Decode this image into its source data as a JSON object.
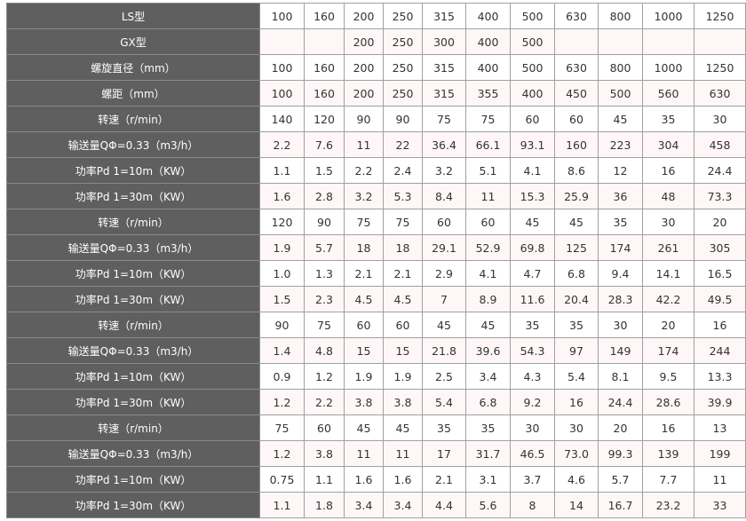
{
  "table": {
    "colors": {
      "header_bg": "#5f5f5f",
      "header_text": "#ffffff",
      "alt_row_bg": "#fff7f7",
      "border": "#a0a0a0"
    },
    "rows": [
      {
        "label": "LS型",
        "values": [
          "100",
          "160",
          "200",
          "250",
          "315",
          "400",
          "500",
          "630",
          "800",
          "1000",
          "1250"
        ]
      },
      {
        "label": "GX型",
        "values": [
          "",
          "",
          "200",
          "250",
          "300",
          "400",
          "500",
          "",
          "",
          "",
          ""
        ]
      },
      {
        "label": "螺旋直径（mm）",
        "values": [
          "100",
          "160",
          "200",
          "250",
          "315",
          "400",
          "500",
          "630",
          "800",
          "1000",
          "1250"
        ]
      },
      {
        "label": "螺距（mm）",
        "values": [
          "100",
          "160",
          "200",
          "250",
          "315",
          "355",
          "400",
          "450",
          "500",
          "560",
          "630"
        ]
      },
      {
        "label": "转速（r/min）",
        "values": [
          "140",
          "120",
          "90",
          "90",
          "75",
          "75",
          "60",
          "60",
          "45",
          "35",
          "30"
        ]
      },
      {
        "label": "输送量QΦ=0.33（m3/h）",
        "values": [
          "2.2",
          "7.6",
          "11",
          "22",
          "36.4",
          "66.1",
          "93.1",
          "160",
          "223",
          "304",
          "458"
        ]
      },
      {
        "label": "功率Pd 1=10m（KW）",
        "values": [
          "1.1",
          "1.5",
          "2.2",
          "2.4",
          "3.2",
          "5.1",
          "4.1",
          "8.6",
          "12",
          "16",
          "24.4"
        ]
      },
      {
        "label": "功率Pd 1=30m（KW）",
        "values": [
          "1.6",
          "2.8",
          "3.2",
          "5.3",
          "8.4",
          "11",
          "15.3",
          "25.9",
          "36",
          "48",
          "73.3"
        ]
      },
      {
        "label": "转速（r/min）",
        "values": [
          "120",
          "90",
          "75",
          "75",
          "60",
          "60",
          "45",
          "45",
          "35",
          "30",
          "20"
        ]
      },
      {
        "label": "输送量QΦ=0.33（m3/h）",
        "values": [
          "1.9",
          "5.7",
          "18",
          "18",
          "29.1",
          "52.9",
          "69.8",
          "125",
          "174",
          "261",
          "305"
        ]
      },
      {
        "label": "功率Pd 1=10m（KW）",
        "values": [
          "1.0",
          "1.3",
          "2.1",
          "2.1",
          "2.9",
          "4.1",
          "4.7",
          "6.8",
          "9.4",
          "14.1",
          "16.5"
        ]
      },
      {
        "label": "功率Pd 1=30m（KW）",
        "values": [
          "1.5",
          "2.3",
          "4.5",
          "4.5",
          "7",
          "8.9",
          "11.6",
          "20.4",
          "28.3",
          "42.2",
          "49.5"
        ]
      },
      {
        "label": "转速（r/min）",
        "values": [
          "90",
          "75",
          "60",
          "60",
          "45",
          "45",
          "35",
          "35",
          "30",
          "20",
          "16"
        ]
      },
      {
        "label": "输送量QΦ=0.33（m3/h）",
        "values": [
          "1.4",
          "4.8",
          "15",
          "15",
          "21.8",
          "39.6",
          "54.3",
          "97",
          "149",
          "174",
          "244"
        ]
      },
      {
        "label": "功率Pd 1=10m（KW）",
        "values": [
          "0.9",
          "1.2",
          "1.9",
          "1.9",
          "2.5",
          "3.4",
          "4.3",
          "5.4",
          "8.1",
          "9.5",
          "13.3"
        ]
      },
      {
        "label": "功率Pd 1=30m（KW）",
        "values": [
          "1.2",
          "2.2",
          "3.8",
          "3.8",
          "5.4",
          "6.8",
          "9.2",
          "16",
          "24.4",
          "28.6",
          "39.9"
        ]
      },
      {
        "label": "转速（r/min）",
        "values": [
          "75",
          "60",
          "45",
          "45",
          "35",
          "35",
          "30",
          "30",
          "20",
          "16",
          "13"
        ]
      },
      {
        "label": "输送量QΦ=0.33（m3/h）",
        "values": [
          "1.2",
          "3.8",
          "11",
          "11",
          "17",
          "31.7",
          "46.5",
          "73.0",
          "99.3",
          "139",
          "199"
        ]
      },
      {
        "label": "功率Pd 1=10m（KW）",
        "values": [
          "0.75",
          "1.1",
          "1.6",
          "1.6",
          "2.1",
          "3.1",
          "3.7",
          "4.6",
          "5.7",
          "7.7",
          "11"
        ]
      },
      {
        "label": "功率Pd 1=30m（KW）",
        "values": [
          "1.1",
          "1.8",
          "3.4",
          "3.4",
          "4.4",
          "5.6",
          "8",
          "14",
          "16.7",
          "23.2",
          "33"
        ]
      }
    ]
  }
}
